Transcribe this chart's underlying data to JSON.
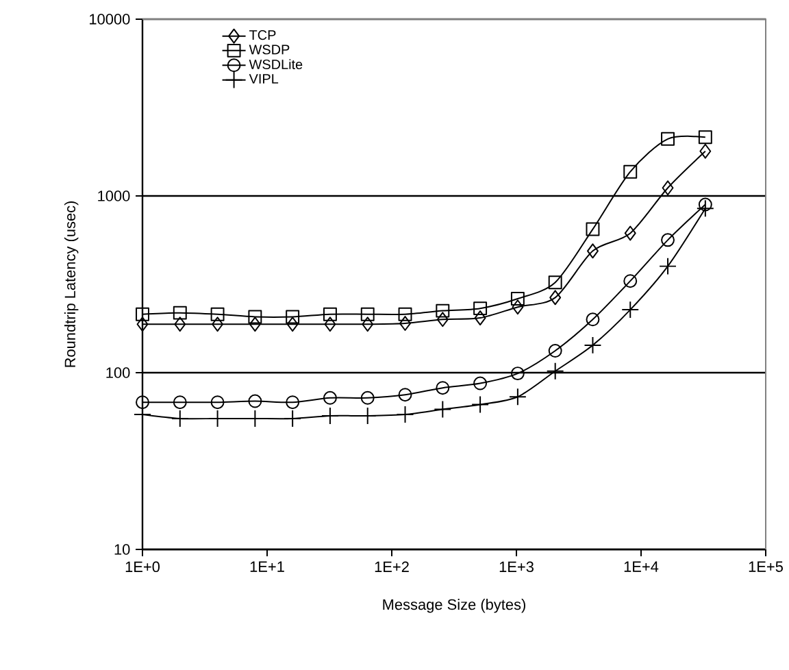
{
  "chart_data": {
    "type": "line",
    "xlabel": "Message Size (bytes)",
    "ylabel": "Roundtrip Latency (usec)",
    "log": "xy",
    "grid": "y",
    "legend": "top left",
    "line_style": "solid",
    "x": [
      1,
      2,
      4,
      8,
      16,
      32,
      64,
      128,
      256,
      512,
      1024,
      2048,
      4096,
      8192,
      16384,
      32768
    ],
    "xlim": [
      1,
      100000
    ],
    "ylim": [
      10,
      10000
    ],
    "xticks": [
      {
        "value": 1,
        "label": "1E+0"
      },
      {
        "value": 10,
        "label": "1E+1"
      },
      {
        "value": 100,
        "label": "1E+2"
      },
      {
        "value": 1000,
        "label": "1E+3"
      },
      {
        "value": 10000,
        "label": "1E+4"
      },
      {
        "value": 100000,
        "label": "1E+5"
      }
    ],
    "yticks": [
      10,
      100,
      1000,
      10000
    ],
    "series": [
      {
        "name": "TCP",
        "color": "#000000",
        "marker": "diamond",
        "values": [
          188,
          188,
          188,
          188,
          188,
          188,
          188,
          190,
          200,
          204,
          235,
          266,
          488,
          615,
          1110,
          1790
        ]
      },
      {
        "name": "WSDP",
        "color": "#000000",
        "marker": "square",
        "values": [
          214,
          218,
          214,
          207,
          207,
          214,
          214,
          214,
          224,
          231,
          262,
          324,
          648,
          1370,
          2100,
          2150
        ]
      },
      {
        "name": "WSDLite",
        "color": "#000000",
        "marker": "circle",
        "values": [
          68,
          68,
          68,
          69,
          68,
          72,
          72,
          75,
          82,
          87,
          99,
          133,
          200,
          330,
          563,
          894
        ]
      },
      {
        "name": "VIPL",
        "color": "#000000",
        "marker": "cross",
        "values": [
          58,
          55,
          55,
          55,
          55,
          57,
          57,
          58,
          62,
          66,
          73,
          102,
          143,
          227,
          400,
          850
        ]
      }
    ]
  }
}
